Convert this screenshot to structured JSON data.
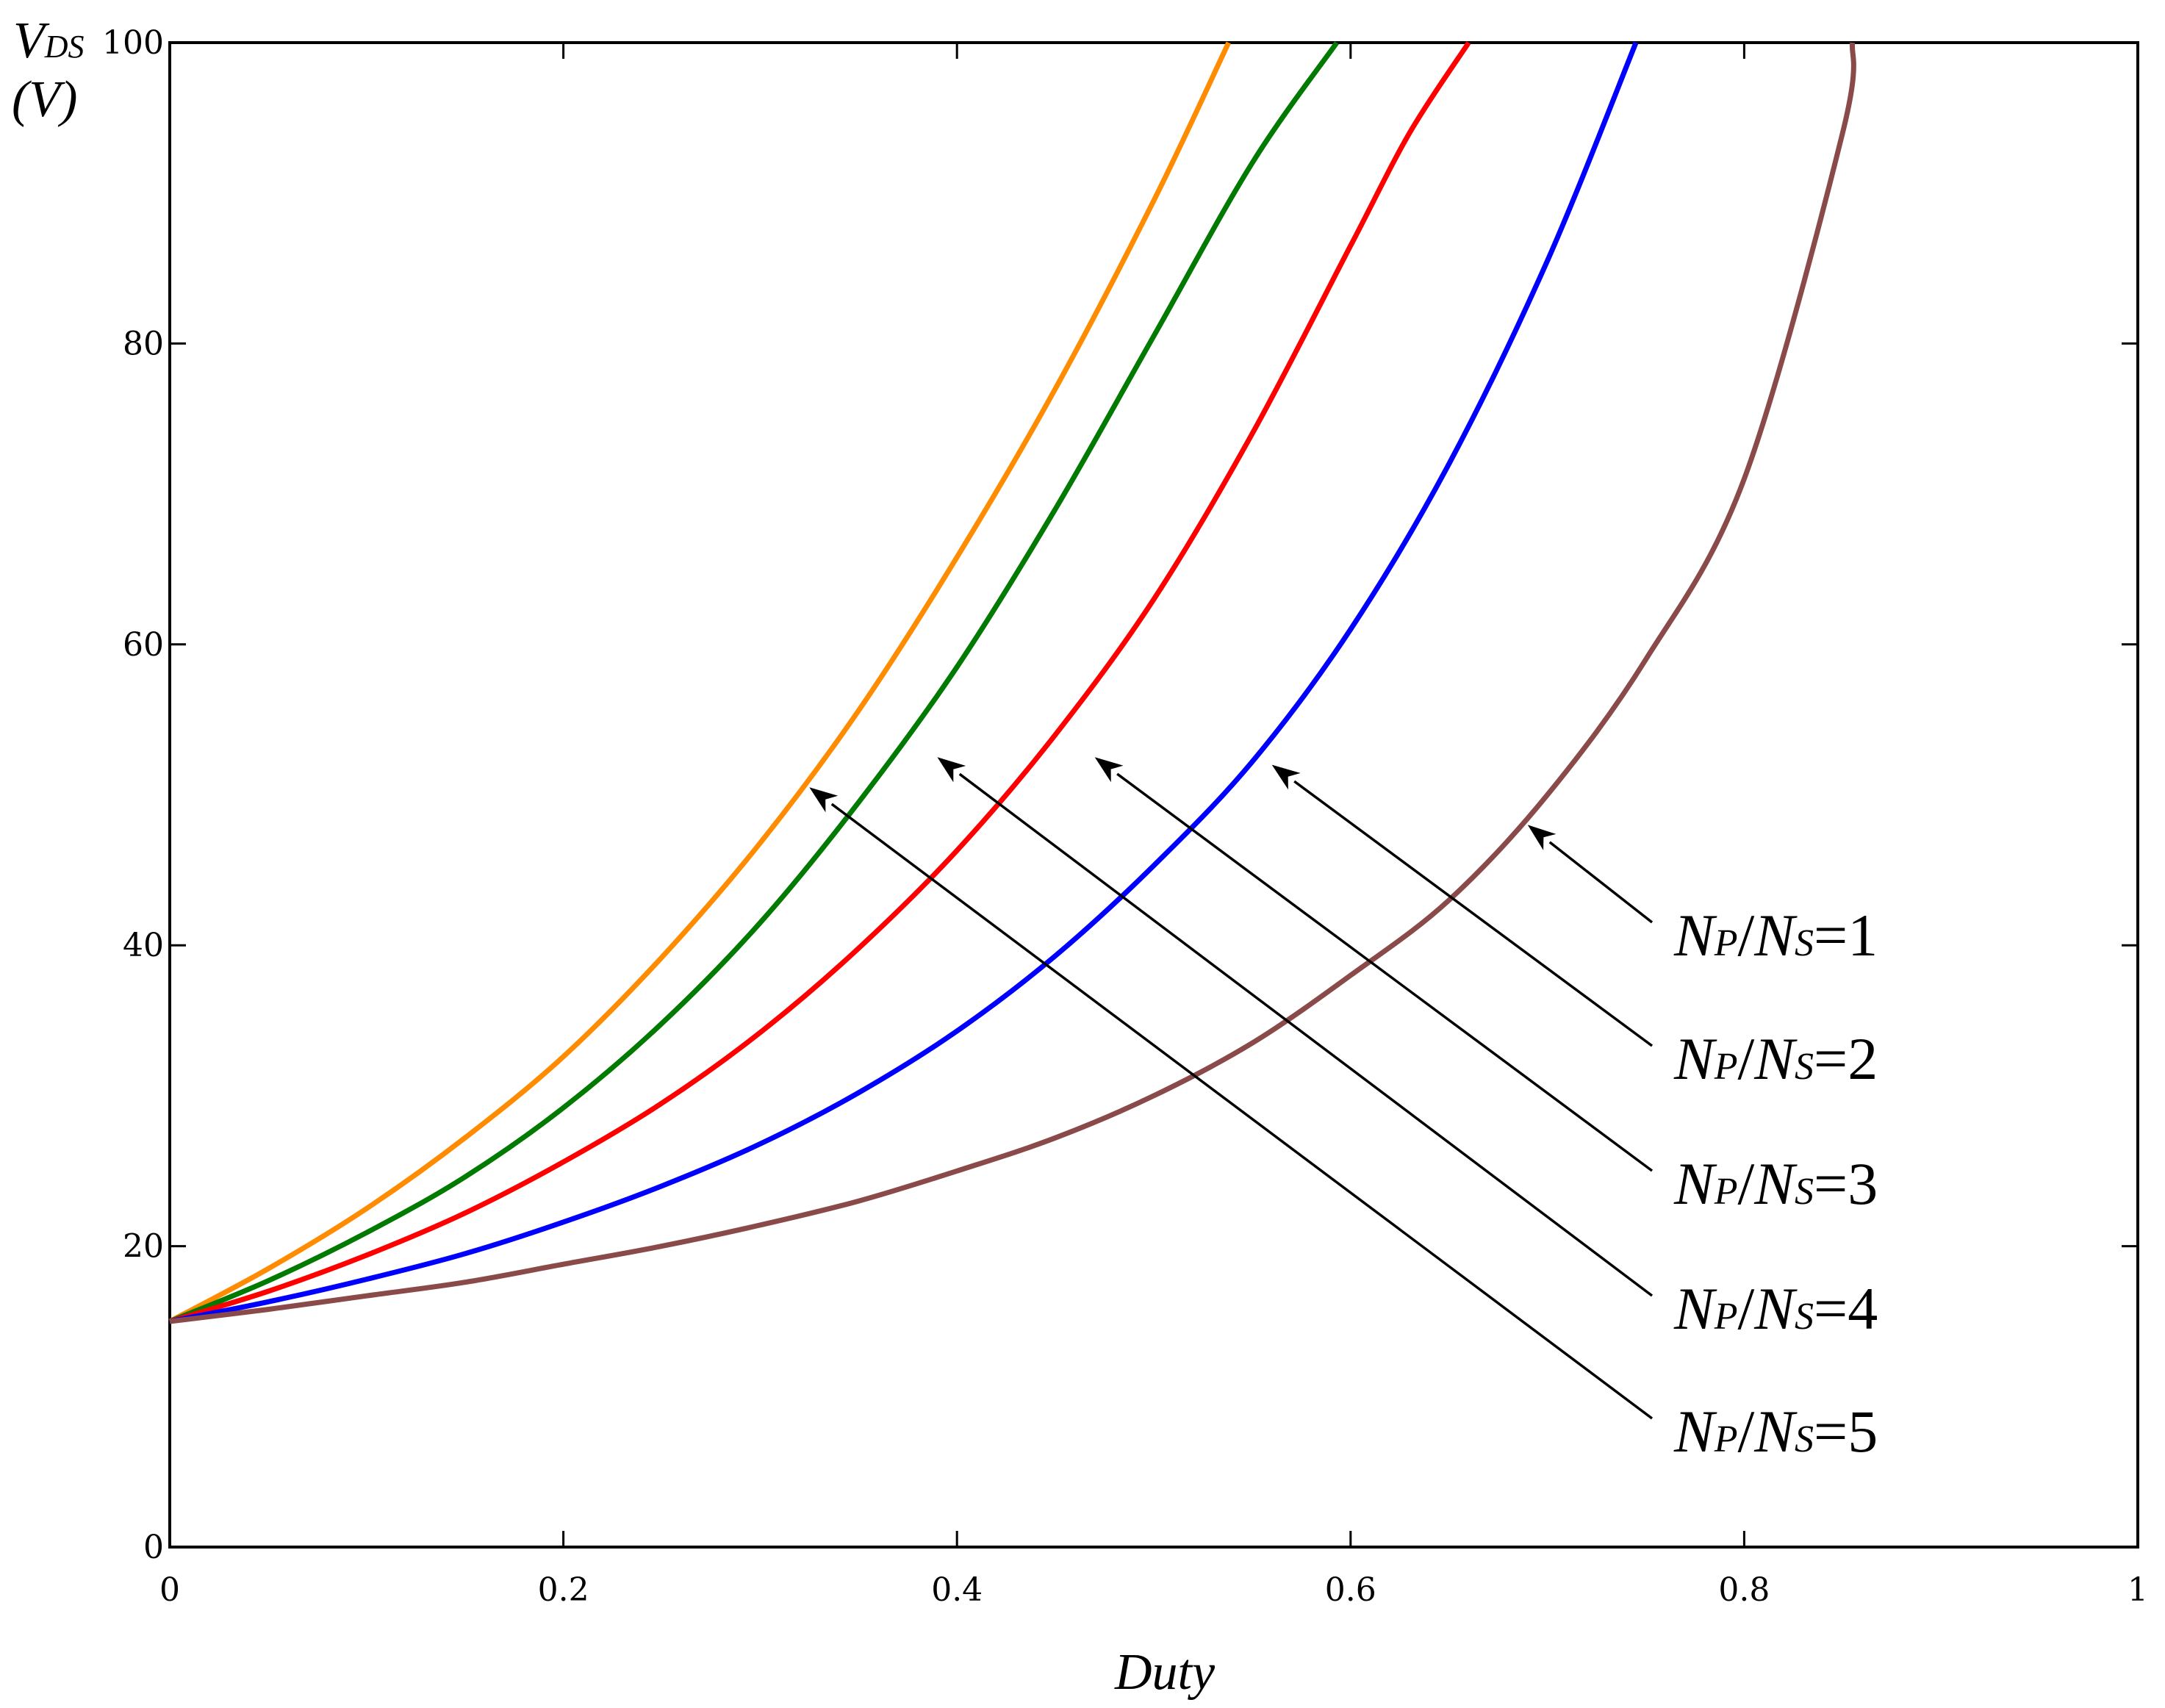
{
  "chart_data": {
    "type": "line",
    "title": "",
    "xlabel": "Duty",
    "ylabel": {
      "main": "V",
      "sub": "DS",
      "unit": "(V)"
    },
    "xlim": [
      0,
      1
    ],
    "ylim": [
      0,
      100
    ],
    "xticks": [
      0,
      0.2,
      0.4,
      0.6,
      0.8,
      1
    ],
    "xtick_labels": [
      "0",
      "0.2",
      "0.4",
      "0.6",
      "0.8",
      "1"
    ],
    "yticks": [
      0,
      20,
      40,
      60,
      80,
      100
    ],
    "ytick_labels": [
      "0",
      "20",
      "40",
      "60",
      "80",
      "100"
    ],
    "grid": false,
    "series": [
      {
        "name": "NP/NS=1",
        "label": {
          "n1": "N",
          "s1": "P",
          "slash": "/",
          "n2": "N",
          "s2": "S",
          "eq": "=1"
        },
        "color": "#8b4a4a",
        "x": [
          0,
          0.05,
          0.1,
          0.15,
          0.2,
          0.25,
          0.3,
          0.35,
          0.4,
          0.45,
          0.5,
          0.55,
          0.6,
          0.65,
          0.7,
          0.75,
          0.8,
          0.85,
          0.855
        ],
        "values": [
          15,
          15.8,
          16.7,
          17.6,
          18.8,
          20,
          21.4,
          23,
          25,
          27.2,
          30,
          33.5,
          38,
          43,
          50,
          59,
          71,
          94,
          100
        ],
        "arrow_at": [
          0.69,
          48
        ]
      },
      {
        "name": "NP/NS=2",
        "label": {
          "n1": "N",
          "s1": "P",
          "slash": "/",
          "n2": "N",
          "s2": "S",
          "eq": "=2"
        },
        "color": "#0000ff",
        "x": [
          0,
          0.05,
          0.1,
          0.15,
          0.2,
          0.25,
          0.3,
          0.35,
          0.4,
          0.45,
          0.5,
          0.55,
          0.6,
          0.65,
          0.7,
          0.745
        ],
        "values": [
          15,
          16.3,
          17.8,
          19.5,
          21.6,
          24,
          26.8,
          30.2,
          34.3,
          39.3,
          45.3,
          52.2,
          61,
          72,
          85.5,
          100
        ],
        "arrow_at": [
          0.56,
          52
        ]
      },
      {
        "name": "NP/NS=3",
        "label": {
          "n1": "N",
          "s1": "P",
          "slash": "/",
          "n2": "N",
          "s2": "S",
          "eq": "=3"
        },
        "color": "#ff0000",
        "x": [
          0,
          0.05,
          0.1,
          0.15,
          0.2,
          0.25,
          0.3,
          0.35,
          0.4,
          0.45,
          0.5,
          0.55,
          0.6,
          0.63,
          0.66
        ],
        "values": [
          15,
          17,
          19.4,
          22.2,
          25.6,
          29.5,
          34.2,
          39.8,
          46.3,
          54,
          63,
          74,
          86.5,
          94,
          100
        ],
        "arrow_at": [
          0.47,
          52.5
        ]
      },
      {
        "name": "NP/NS=4",
        "label": {
          "n1": "N",
          "s1": "P",
          "slash": "/",
          "n2": "N",
          "s2": "S",
          "eq": "=4"
        },
        "color": "#007a00",
        "x": [
          0,
          0.05,
          0.1,
          0.15,
          0.2,
          0.25,
          0.3,
          0.35,
          0.4,
          0.45,
          0.5,
          0.55,
          0.593
        ],
        "values": [
          15,
          17.7,
          20.9,
          24.6,
          29.2,
          34.8,
          41.5,
          49.5,
          58.5,
          69,
          80.5,
          92,
          100
        ],
        "arrow_at": [
          0.39,
          52.5
        ]
      },
      {
        "name": "NP/NS=5",
        "label": {
          "n1": "N",
          "s1": "P",
          "slash": "/",
          "n2": "N",
          "s2": "S",
          "eq": "=5"
        },
        "color": "#ff8c00",
        "x": [
          0,
          0.05,
          0.1,
          0.15,
          0.2,
          0.25,
          0.3,
          0.35,
          0.4,
          0.45,
          0.5,
          0.538
        ],
        "values": [
          15,
          18.5,
          22.5,
          27.2,
          32.6,
          39.2,
          46.8,
          55.6,
          65.8,
          77,
          89.5,
          100
        ],
        "arrow_at": [
          0.325,
          50.5
        ]
      }
    ]
  }
}
